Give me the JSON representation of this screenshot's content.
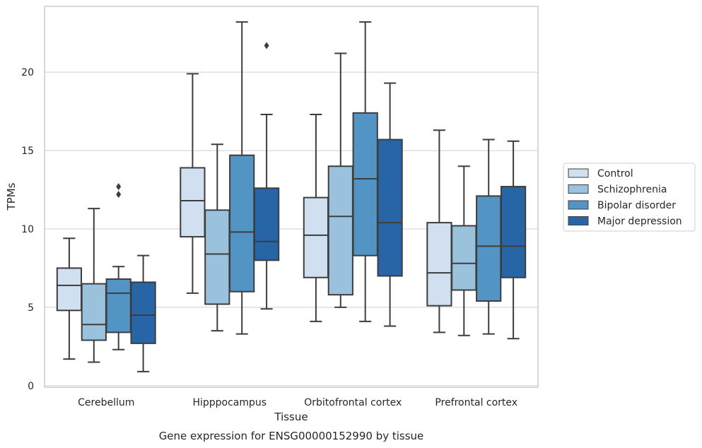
{
  "chart_data": {
    "type": "box",
    "xlabel": "Tissue",
    "ylabel": "TPMs",
    "caption": "Gene expression for ENSG00000152990 by tissue",
    "ylim": [
      -0.1,
      24.2
    ],
    "yticks": [
      0,
      5,
      10,
      15,
      20
    ],
    "grid": "horizontal",
    "legend_placement": "right",
    "categories": [
      "Cerebellum",
      "Hipppocampus",
      "Orbitofrontal cortex",
      "Prefrontal cortex"
    ],
    "series": [
      {
        "name": "Control",
        "color": "#d0e0f1",
        "boxes": [
          {
            "whisker_low": 1.7,
            "q1": 4.8,
            "median": 6.4,
            "q3": 7.5,
            "whisker_high": 9.4,
            "outliers": []
          },
          {
            "whisker_low": 5.9,
            "q1": 9.5,
            "median": 11.8,
            "q3": 13.9,
            "whisker_high": 19.9,
            "outliers": []
          },
          {
            "whisker_low": 4.1,
            "q1": 6.9,
            "median": 9.6,
            "q3": 12.0,
            "whisker_high": 17.3,
            "outliers": []
          },
          {
            "whisker_low": 3.4,
            "q1": 5.1,
            "median": 7.2,
            "q3": 10.4,
            "whisker_high": 16.3,
            "outliers": []
          }
        ]
      },
      {
        "name": "Schizophrenia",
        "color": "#9bc2dc",
        "boxes": [
          {
            "whisker_low": 1.5,
            "q1": 2.9,
            "median": 3.9,
            "q3": 6.5,
            "whisker_high": 11.3,
            "outliers": []
          },
          {
            "whisker_low": 3.5,
            "q1": 5.2,
            "median": 8.4,
            "q3": 11.2,
            "whisker_high": 15.4,
            "outliers": []
          },
          {
            "whisker_low": 5.0,
            "q1": 5.8,
            "median": 10.8,
            "q3": 14.0,
            "whisker_high": 21.2,
            "outliers": []
          },
          {
            "whisker_low": 3.2,
            "q1": 6.1,
            "median": 7.8,
            "q3": 10.2,
            "whisker_high": 14.0,
            "outliers": []
          }
        ]
      },
      {
        "name": "Bipolar disorder",
        "color": "#5295c5",
        "boxes": [
          {
            "whisker_low": 2.3,
            "q1": 3.4,
            "median": 5.9,
            "q3": 6.8,
            "whisker_high": 7.6,
            "outliers": [
              12.2,
              12.7
            ]
          },
          {
            "whisker_low": 3.3,
            "q1": 6.0,
            "median": 9.8,
            "q3": 14.7,
            "whisker_high": 23.2,
            "outliers": []
          },
          {
            "whisker_low": 4.1,
            "q1": 8.3,
            "median": 13.2,
            "q3": 17.4,
            "whisker_high": 23.2,
            "outliers": []
          },
          {
            "whisker_low": 3.3,
            "q1": 5.4,
            "median": 8.9,
            "q3": 12.1,
            "whisker_high": 15.7,
            "outliers": []
          }
        ]
      },
      {
        "name": "Major depression",
        "color": "#2765a7",
        "boxes": [
          {
            "whisker_low": 0.9,
            "q1": 2.7,
            "median": 4.5,
            "q3": 6.6,
            "whisker_high": 8.3,
            "outliers": []
          },
          {
            "whisker_low": 4.9,
            "q1": 8.0,
            "median": 9.2,
            "q3": 12.6,
            "whisker_high": 17.3,
            "outliers": [
              21.7
            ]
          },
          {
            "whisker_low": 3.8,
            "q1": 7.0,
            "median": 10.4,
            "q3": 15.7,
            "whisker_high": 19.3,
            "outliers": []
          },
          {
            "whisker_low": 3.0,
            "q1": 6.9,
            "median": 8.9,
            "q3": 12.7,
            "whisker_high": 15.6,
            "outliers": []
          }
        ]
      }
    ]
  }
}
